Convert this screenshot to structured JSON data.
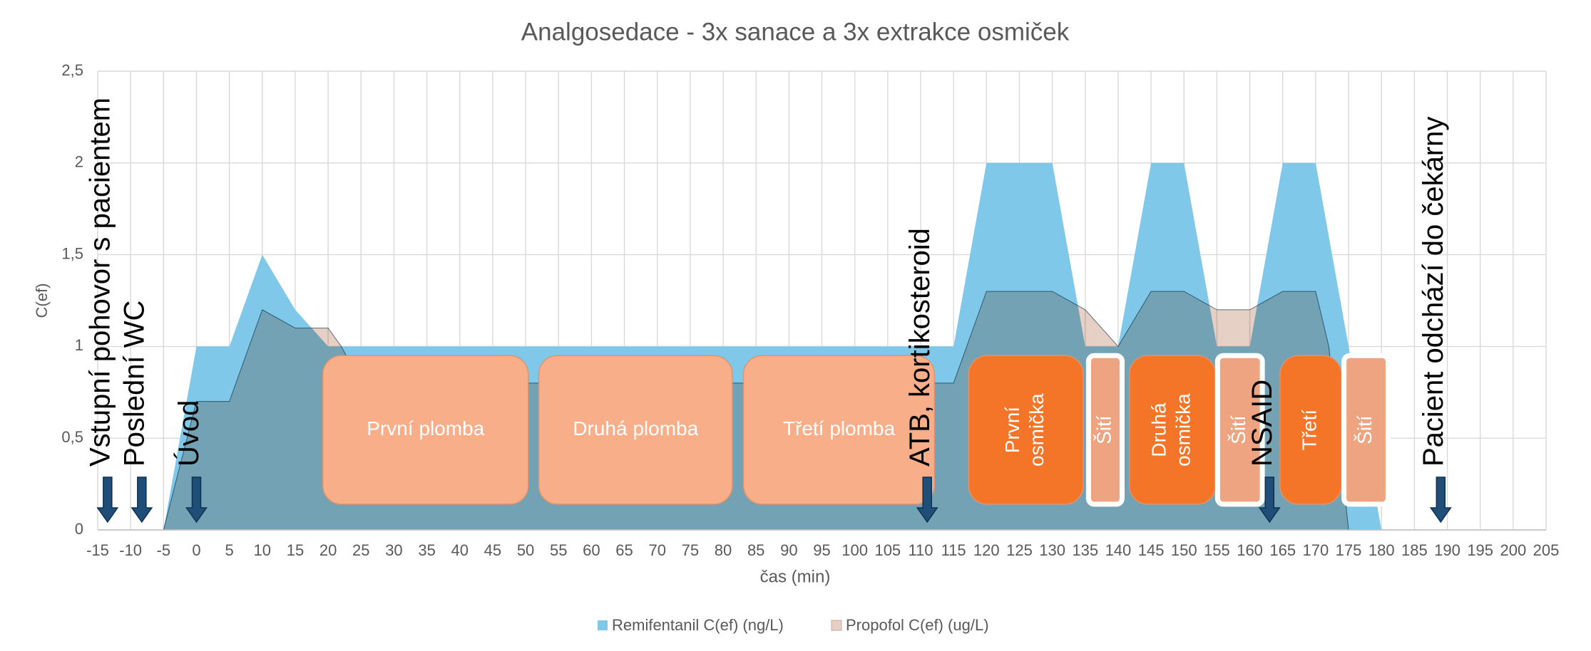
{
  "chart_data": {
    "type": "area",
    "title": "Analgosedace - 3x sanace a 3x extrakce osmiček",
    "xlabel": "čas (min)",
    "ylabel": "C(ef)",
    "xlim": [
      -15,
      205
    ],
    "xticks": [
      -15,
      -10,
      -5,
      0,
      5,
      10,
      15,
      20,
      25,
      30,
      35,
      40,
      45,
      50,
      55,
      60,
      65,
      70,
      75,
      80,
      85,
      90,
      95,
      100,
      105,
      110,
      115,
      120,
      125,
      130,
      135,
      140,
      145,
      150,
      155,
      160,
      165,
      170,
      175,
      180,
      185,
      190,
      195,
      200,
      205
    ],
    "ylim": [
      0,
      2.5
    ],
    "yticks": [
      0,
      {
        "value": 0.5,
        "label": "0,5"
      },
      1,
      {
        "value": 1.5,
        "label": "1,5"
      },
      2,
      {
        "value": 2.5,
        "label": "2,5"
      }
    ],
    "grid": true,
    "legend": "bottom",
    "series": [
      {
        "name": "Remifentanil C(ef)  (ng/L)",
        "color": "#7fc8ea",
        "x": [
          -5,
          0,
          5,
          10,
          15,
          20,
          115,
          120,
          130,
          135,
          140,
          145,
          150,
          155,
          160,
          165,
          170,
          175,
          180
        ],
        "values": [
          0,
          1,
          1,
          1.5,
          1.2,
          1,
          1,
          2,
          2,
          1,
          1,
          2,
          2,
          1,
          1,
          2,
          2,
          1,
          0
        ]
      },
      {
        "name": "Propofol C(ef)  (ug/L)",
        "color": "#e6cfc4",
        "x": [
          -5,
          0,
          5,
          10,
          15,
          20,
          22,
          25,
          110,
          115,
          120,
          130,
          135,
          140,
          145,
          150,
          155,
          160,
          165,
          170,
          172,
          175
        ],
        "values": [
          0,
          0.7,
          0.7,
          1.2,
          1.1,
          1.1,
          1,
          0.8,
          0.8,
          0.8,
          1.3,
          1.3,
          1.2,
          1,
          1.3,
          1.3,
          1.2,
          1.2,
          1.3,
          1.3,
          1,
          0
        ]
      }
    ],
    "phases": [
      {
        "label": [
          "První plomba"
        ],
        "x": [
          19.2,
          50.4
        ],
        "color": "#f8ae88"
      },
      {
        "label": [
          "Druhá plomba"
        ],
        "x": [
          52,
          81.4
        ],
        "color": "#f8ae88"
      },
      {
        "label": [
          "Třetí plomba"
        ],
        "x": [
          83.1,
          112.1
        ],
        "color": "#f8ae88"
      },
      {
        "label": [
          "První",
          "osmička"
        ],
        "x": [
          117.3,
          134.7
        ],
        "color": "#f47528",
        "rotate": true
      },
      {
        "label": [
          "Šití"
        ],
        "x": [
          135.5,
          140.6
        ],
        "color": "#eea480",
        "rotate": true,
        "border": true
      },
      {
        "label": [
          "Druhá",
          "osmička"
        ],
        "x": [
          141.7,
          154.8
        ],
        "color": "#f47528",
        "rotate": true
      },
      {
        "label": [
          "Šití"
        ],
        "x": [
          155.1,
          161.9
        ],
        "color": "#eea480",
        "rotate": true,
        "border": true
      },
      {
        "label": [
          "Třetí"
        ],
        "x": [
          164.6,
          173.9
        ],
        "color": "#f47528",
        "rotate": true
      },
      {
        "label": [
          "Šití"
        ],
        "x": [
          174.3,
          181
        ],
        "color": "#eea480",
        "rotate": true,
        "border": true
      }
    ],
    "annotations": [
      {
        "text": "Vstupní pohovor s pacientem",
        "x": -13.5
      },
      {
        "text": "Poslední WC",
        "x": -8.3
      },
      {
        "text": "Úvod",
        "x": 0
      },
      {
        "text": "ATB, kortikosteroid",
        "x": 111
      },
      {
        "text": "NSAID",
        "x": 163
      },
      {
        "text": "Pacient odchází do čekárny",
        "x": 189
      }
    ]
  }
}
